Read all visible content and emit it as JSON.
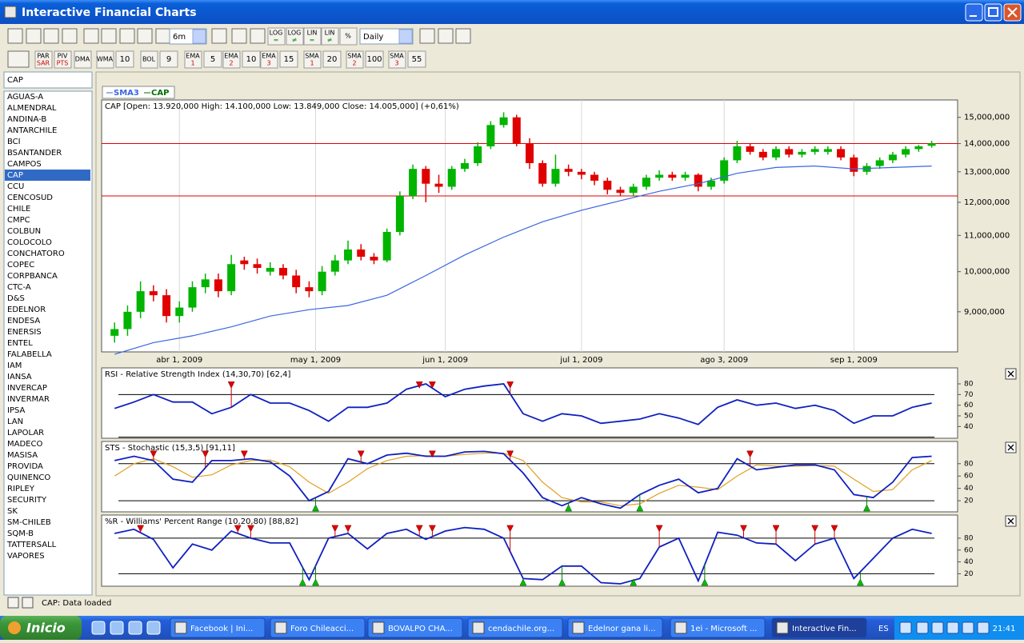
{
  "window": {
    "title": "Interactive Financial Charts"
  },
  "toolbar": {
    "period": "6m",
    "interval": "Daily",
    "scale_buttons": [
      {
        "top": "LOG",
        "bottom": "="
      },
      {
        "top": "LOG",
        "bottom": "≠"
      },
      {
        "top": "LIN",
        "bottom": "="
      },
      {
        "top": "LIN",
        "bottom": "≠"
      },
      {
        "top": "%"
      }
    ],
    "indicator_buttons": [
      {
        "top": "PAR",
        "bottom": "SAR"
      },
      {
        "top": "PIV",
        "bottom": "PTS"
      },
      {
        "top": "DMA"
      },
      {
        "top": "WMA",
        "value": "10"
      },
      {
        "top": "BOL",
        "value": "9"
      },
      {
        "top": "EMA",
        "bottom": "1",
        "value": "5"
      },
      {
        "top": "EMA",
        "bottom": "2",
        "value": "10"
      },
      {
        "top": "EMA",
        "bottom": "3",
        "value": "15"
      },
      {
        "top": "SMA",
        "bottom": "1",
        "value": "20"
      },
      {
        "top": "SMA",
        "bottom": "2",
        "value": "100"
      },
      {
        "top": "SMA",
        "bottom": "3",
        "value": "55"
      }
    ]
  },
  "symbols": {
    "input": "CAP",
    "selected": 7,
    "list": [
      "AGUAS-A",
      "ALMENDRAL",
      "ANDINA-B",
      "ANTARCHILE",
      "BCI",
      "BSANTANDER",
      "CAMPOS",
      "CAP",
      "CCU",
      "CENCOSUD",
      "CHILE",
      "CMPC",
      "COLBUN",
      "COLOCOLO",
      "CONCHATORO",
      "COPEC",
      "CORPBANCA",
      "CTC-A",
      "D&S",
      "EDELNOR",
      "ENDESA",
      "ENERSIS",
      "ENTEL",
      "FALABELLA",
      "IAM",
      "IANSA",
      "INVERCAP",
      "INVERMAR",
      "IPSA",
      "LAN",
      "LAPOLAR",
      "MADECO",
      "MASISA",
      "PROVIDA",
      "QUINENCO",
      "RIPLEY",
      "SECURITY",
      "SK",
      "SM-CHILEB",
      "SQM-B",
      "TATTERSALL",
      "VAPORES"
    ]
  },
  "chart_data": [
    {
      "type": "candlestick",
      "name": "CAP",
      "title": "CAP [Open: 13.920,000  High: 14.100,000  Low: 13.849,000  Close: 14.005,000] (+0,61%)",
      "up_color": "#00b400",
      "down_color": "#e00000",
      "log": true,
      "ylim": [
        8100000,
        15700000
      ],
      "yticks": [
        {
          "value": 9000000,
          "label": "9,000,000"
        },
        {
          "value": 10000000,
          "label": "10,000,000"
        },
        {
          "value": 11000000,
          "label": "11,000,000"
        },
        {
          "value": 12000000,
          "label": "12,000,000"
        },
        {
          "value": 13000000,
          "label": "13,000,000"
        },
        {
          "value": 14000000,
          "label": "14,000,000"
        },
        {
          "value": 15000000,
          "label": "15,000,000"
        }
      ],
      "xlim": [
        -2,
        130
      ],
      "xticks": [
        {
          "value": 10,
          "label": "abr 1, 2009"
        },
        {
          "value": 31,
          "label": "may 1, 2009"
        },
        {
          "value": 51,
          "label": "jun 1, 2009"
        },
        {
          "value": 72,
          "label": "jul 1, 2009"
        },
        {
          "value": 94,
          "label": "ago 3, 2009"
        },
        {
          "value": 114,
          "label": "sep 1, 2009"
        }
      ],
      "grid": "x",
      "hlines": [
        14000000,
        12200000
      ],
      "hline_color": "#e00000",
      "x": [
        0,
        2,
        4,
        6,
        8,
        10,
        12,
        14,
        16,
        18,
        20,
        22,
        24,
        26,
        28,
        30,
        32,
        34,
        36,
        38,
        40,
        42,
        44,
        46,
        48,
        50,
        52,
        54,
        56,
        58,
        60,
        62,
        64,
        66,
        68,
        70,
        72,
        74,
        76,
        78,
        80,
        82,
        84,
        86,
        88,
        90,
        92,
        94,
        96,
        98,
        100,
        102,
        104,
        106,
        108,
        110,
        112,
        114,
        116,
        118,
        120,
        122,
        124,
        126
      ],
      "open": [
        8450000,
        8600000,
        9000000,
        9500000,
        9400000,
        8900000,
        9100000,
        9600000,
        9800000,
        9500000,
        10300000,
        10200000,
        10000000,
        10100000,
        9900000,
        9600000,
        9500000,
        10000000,
        10300000,
        10600000,
        10400000,
        10300000,
        11100000,
        12200000,
        13100000,
        12600000,
        12500000,
        13100000,
        13300000,
        13900000,
        14700000,
        15000000,
        14000000,
        13300000,
        12600000,
        13100000,
        13000000,
        12900000,
        12700000,
        12400000,
        12300000,
        12500000,
        12800000,
        12900000,
        12800000,
        12900000,
        12500000,
        12700000,
        13400000,
        13900000,
        13700000,
        13500000,
        13800000,
        13600000,
        13700000,
        13700000,
        13800000,
        13500000,
        13000000,
        13200000,
        13400000,
        13600000,
        13800000,
        13920000
      ],
      "high": [
        8750000,
        9150000,
        9750000,
        9650000,
        9550000,
        9250000,
        9750000,
        9950000,
        9950000,
        10450000,
        10400000,
        10350000,
        10250000,
        10200000,
        10050000,
        9750000,
        10150000,
        10450000,
        10850000,
        10750000,
        10500000,
        11200000,
        12350000,
        13250000,
        13200000,
        12900000,
        13200000,
        13450000,
        14050000,
        14850000,
        15200000,
        15100000,
        14200000,
        13400000,
        13600000,
        13250000,
        13100000,
        13000000,
        12800000,
        12500000,
        12600000,
        12900000,
        13050000,
        13000000,
        13000000,
        12950000,
        12800000,
        13500000,
        14100000,
        14000000,
        13800000,
        13900000,
        13900000,
        13800000,
        13900000,
        13900000,
        13900000,
        13600000,
        13300000,
        13500000,
        13700000,
        13900000,
        13950000,
        14100000
      ],
      "low": [
        8300000,
        8450000,
        8850000,
        9250000,
        8750000,
        8750000,
        9000000,
        9450000,
        9350000,
        9400000,
        10050000,
        9950000,
        9900000,
        9800000,
        9450000,
        9350000,
        9400000,
        9900000,
        10200000,
        10300000,
        10200000,
        10250000,
        11000000,
        12100000,
        12000000,
        12300000,
        12400000,
        13000000,
        13200000,
        13800000,
        14600000,
        13900000,
        13100000,
        12500000,
        12500000,
        12850000,
        12750000,
        12550000,
        12250000,
        12200000,
        12200000,
        12400000,
        12700000,
        12700000,
        12700000,
        12350000,
        12400000,
        12600000,
        13300000,
        13600000,
        13400000,
        13400000,
        13500000,
        13500000,
        13600000,
        13600000,
        13400000,
        12850000,
        12900000,
        13100000,
        13300000,
        13500000,
        13700000,
        13849000
      ],
      "close": [
        8600000,
        9000000,
        9500000,
        9400000,
        8900000,
        9100000,
        9600000,
        9800000,
        9500000,
        10200000,
        10200000,
        10100000,
        10100000,
        9900000,
        9600000,
        9500000,
        10000000,
        10300000,
        10600000,
        10400000,
        10300000,
        11100000,
        12200000,
        13100000,
        12600000,
        12500000,
        13100000,
        13300000,
        13900000,
        14700000,
        15000000,
        14000000,
        13300000,
        12600000,
        13100000,
        13000000,
        12900000,
        12700000,
        12400000,
        12300000,
        12500000,
        12800000,
        12900000,
        12800000,
        12900000,
        12500000,
        12700000,
        13400000,
        13900000,
        13700000,
        13500000,
        13800000,
        13600000,
        13700000,
        13800000,
        13800000,
        13500000,
        13000000,
        13200000,
        13400000,
        13600000,
        13800000,
        13900000,
        14005000
      ],
      "lines": [
        {
          "name": "SMA3",
          "color": "#3a66e0",
          "x": [
            0,
            6,
            12,
            18,
            24,
            30,
            36,
            42,
            48,
            54,
            60,
            66,
            72,
            78,
            84,
            90,
            96,
            102,
            108,
            114,
            120,
            126
          ],
          "values": [
            8050000,
            8300000,
            8450000,
            8650000,
            8900000,
            9050000,
            9150000,
            9400000,
            9900000,
            10450000,
            10950000,
            11400000,
            11750000,
            12050000,
            12350000,
            12600000,
            12950000,
            13150000,
            13200000,
            13100000,
            13150000,
            13200000
          ]
        }
      ]
    },
    {
      "type": "line",
      "title": "RSI - Relative Strength Index (14,30,70) [62,4]",
      "ylim": [
        29,
        95
      ],
      "yticks": [
        40,
        50,
        60,
        70,
        80
      ],
      "levels": [
        70,
        30
      ],
      "xlim": [
        -2,
        130
      ],
      "x": [
        0,
        3,
        6,
        9,
        12,
        15,
        18,
        21,
        24,
        27,
        30,
        33,
        36,
        39,
        42,
        45,
        48,
        51,
        54,
        57,
        60,
        63,
        66,
        69,
        72,
        75,
        78,
        81,
        84,
        87,
        90,
        93,
        96,
        99,
        102,
        105,
        108,
        111,
        114,
        117,
        120,
        123,
        126
      ],
      "series": [
        {
          "color": "#1020c0",
          "values": [
            57,
            63,
            70,
            63,
            63,
            52,
            58,
            70,
            62,
            62,
            55,
            45,
            58,
            58,
            62,
            75,
            80,
            68,
            75,
            78,
            80,
            52,
            45,
            52,
            50,
            43,
            45,
            47,
            52,
            48,
            42,
            58,
            65,
            60,
            62,
            57,
            60,
            55,
            43,
            50,
            50,
            58,
            62
          ]
        }
      ],
      "sell_signals": [
        18,
        47,
        49,
        61
      ],
      "buy_signals": []
    },
    {
      "type": "line",
      "title": "STS - Stochastic (15,3,5) [91,11]",
      "ylim": [
        2,
        116
      ],
      "yticks": [
        20,
        40,
        60,
        80
      ],
      "levels": [
        80,
        20
      ],
      "xlim": [
        -2,
        130
      ],
      "x": [
        0,
        3,
        6,
        9,
        12,
        15,
        18,
        21,
        24,
        27,
        30,
        33,
        36,
        39,
        42,
        45,
        48,
        51,
        54,
        57,
        60,
        63,
        66,
        69,
        72,
        75,
        78,
        81,
        84,
        87,
        90,
        93,
        96,
        99,
        102,
        105,
        108,
        111,
        114,
        117,
        120,
        123,
        126
      ],
      "series": [
        {
          "color": "#e0a020",
          "values": [
            60,
            80,
            88,
            75,
            58,
            62,
            78,
            85,
            86,
            75,
            50,
            32,
            50,
            72,
            85,
            92,
            93,
            92,
            95,
            97,
            97,
            85,
            50,
            25,
            18,
            18,
            12,
            15,
            32,
            45,
            42,
            38,
            60,
            78,
            76,
            76,
            77,
            76,
            55,
            35,
            38,
            70,
            85
          ]
        },
        {
          "color": "#1020c0",
          "values": [
            85,
            92,
            85,
            55,
            50,
            85,
            85,
            88,
            83,
            60,
            20,
            35,
            88,
            80,
            94,
            97,
            92,
            92,
            99,
            100,
            96,
            65,
            25,
            12,
            25,
            15,
            8,
            30,
            45,
            55,
            33,
            40,
            88,
            70,
            74,
            78,
            78,
            70,
            30,
            25,
            50,
            90,
            92
          ]
        }
      ],
      "sell_signals": [
        6,
        14,
        20,
        38,
        49,
        61,
        98
      ],
      "buy_signals": [
        31,
        70,
        81,
        116
      ]
    },
    {
      "type": "line",
      "title": "%R - Williams' Percent Range (10,20,80) [88,82]",
      "ylim": [
        -1,
        119
      ],
      "yticks": [
        20,
        40,
        60,
        80
      ],
      "levels": [
        80,
        20
      ],
      "xlim": [
        -2,
        130
      ],
      "x": [
        0,
        3,
        6,
        9,
        12,
        15,
        18,
        21,
        24,
        27,
        30,
        33,
        36,
        39,
        42,
        45,
        48,
        51,
        54,
        57,
        60,
        63,
        66,
        69,
        72,
        75,
        78,
        81,
        84,
        87,
        90,
        93,
        96,
        99,
        102,
        105,
        108,
        111,
        114,
        117,
        120,
        123,
        126
      ],
      "series": [
        {
          "color": "#1020c0",
          "values": [
            88,
            95,
            78,
            30,
            70,
            60,
            92,
            80,
            72,
            72,
            10,
            80,
            88,
            62,
            88,
            95,
            78,
            92,
            98,
            95,
            80,
            12,
            10,
            33,
            33,
            5,
            3,
            12,
            65,
            80,
            8,
            90,
            85,
            72,
            70,
            42,
            70,
            80,
            12,
            46,
            80,
            95,
            88
          ]
        }
      ],
      "sell_signals": [
        4,
        19,
        21,
        34,
        36,
        47,
        49,
        61,
        84,
        97,
        102,
        108,
        111
      ],
      "buy_signals": [
        29,
        31,
        63,
        69,
        80,
        91,
        115
      ]
    }
  ],
  "status": "CAP: Data loaded",
  "taskbar": {
    "start": "Inicio",
    "active": 6,
    "tasks": [
      "Facebook | Ini...",
      "Foro Chileacci...",
      "BOVALPO CHA...",
      "cendachile.org...",
      "Edelnor gana li...",
      "1ei - Microsoft ...",
      "Interactive Fin..."
    ],
    "language": "ES",
    "clock": "21:41"
  }
}
